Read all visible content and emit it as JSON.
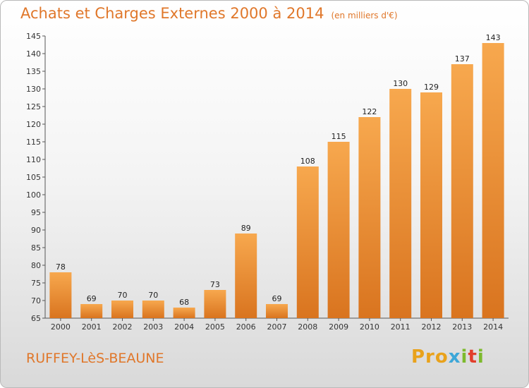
{
  "title": "Achats et Charges Externes 2000 à 2014",
  "subtitle": "(en milliers d'€)",
  "commune": "RUFFEY-LèS-BEAUNE",
  "logo": {
    "p1": "Pro",
    "p2": "x",
    "p3": "i",
    "p4": "t",
    "p5": "i"
  },
  "colors": {
    "bar_light": "#f7a84e",
    "bar_dark": "#d9741f",
    "title": "#e0772a"
  },
  "chart_data": {
    "type": "bar",
    "title": "Achats et Charges Externes 2000 à 2014",
    "subtitle": "(en milliers d'€)",
    "categories": [
      "2000",
      "2001",
      "2002",
      "2003",
      "2004",
      "2005",
      "2006",
      "2007",
      "2008",
      "2009",
      "2010",
      "2011",
      "2012",
      "2013",
      "2014"
    ],
    "values": [
      78,
      69,
      70,
      70,
      68,
      73,
      89,
      69,
      108,
      115,
      122,
      130,
      129,
      137,
      143
    ],
    "ylim": [
      65,
      145
    ],
    "yticks": [
      65,
      70,
      75,
      80,
      85,
      90,
      95,
      100,
      105,
      110,
      115,
      120,
      125,
      130,
      135,
      140,
      145
    ],
    "grid": false,
    "legend": "none"
  }
}
